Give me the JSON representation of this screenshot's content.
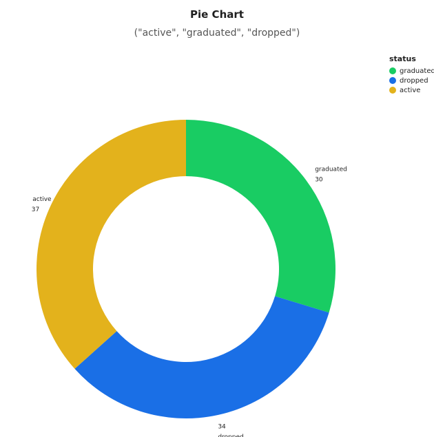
{
  "chart_data": {
    "type": "pie",
    "title": "Pie Chart",
    "subtitle": "(\"active\", \"graduated\", \"dropped\")",
    "legend": {
      "title": "status",
      "placement": "top-right"
    },
    "donut": true,
    "slices": [
      {
        "label": "graduated",
        "value": 30,
        "color": "#19cc63"
      },
      {
        "label": "dropped",
        "value": 34,
        "color": "#1a6fe6"
      },
      {
        "label": "active",
        "value": 37,
        "color": "#e3b21c"
      }
    ]
  }
}
